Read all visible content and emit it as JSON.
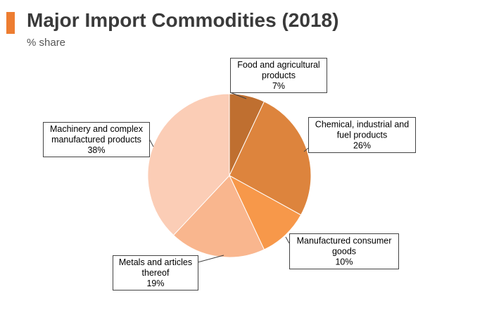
{
  "header": {
    "title": "Major Import Commodities (2018)",
    "subtitle": "% share",
    "accent_color": "#ed7d31"
  },
  "chart_data": {
    "type": "pie",
    "title": "Major Import Commodities (2018)",
    "subtitle": "% share",
    "unit": "%",
    "slices": [
      {
        "label": "Food and agricultural products",
        "value": 7,
        "value_label": "7%",
        "color": "#bf6f30",
        "label_lines": [
          "Food and agricultural",
          "products"
        ]
      },
      {
        "label": "Chemical, industrial and fuel products",
        "value": 26,
        "value_label": "26%",
        "color": "#dd843d",
        "label_lines": [
          "Chemical, industrial and",
          "fuel products"
        ]
      },
      {
        "label": "Manufactured consumer goods",
        "value": 10,
        "value_label": "10%",
        "color": "#f7984a",
        "label_lines": [
          "Manufactured consumer",
          "goods"
        ]
      },
      {
        "label": "Metals and articles thereof",
        "value": 19,
        "value_label": "19%",
        "color": "#f9b68e",
        "label_lines": [
          "Metals and articles",
          "thereof"
        ]
      },
      {
        "label": "Machinery and complex manufactured products",
        "value": 38,
        "value_label": "38%",
        "color": "#fbcdb6",
        "label_lines": [
          "Machinery and complex",
          "manufactured products"
        ]
      }
    ]
  }
}
